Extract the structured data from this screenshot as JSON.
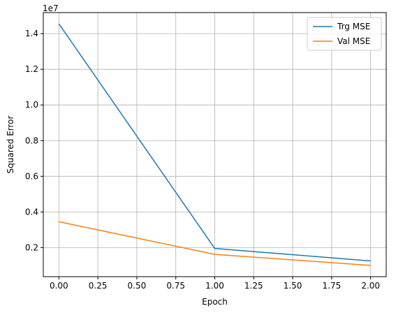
{
  "chart_data": {
    "type": "line",
    "title": "",
    "xlabel": "Epoch",
    "ylabel": "Squared Error",
    "y_scale_label": "1e7",
    "x": [
      0.0,
      1.0,
      2.0
    ],
    "series": [
      {
        "name": "Trg MSE",
        "color": "#1f77b4",
        "values": [
          14550000,
          1950000,
          1250000
        ]
      },
      {
        "name": "Val MSE",
        "color": "#ff7f0e",
        "values": [
          3450000,
          1620000,
          1000000
        ]
      }
    ],
    "xlim": [
      -0.1,
      2.1
    ],
    "ylim": [
      370000,
      15180000
    ],
    "x_ticks": [
      0.0,
      0.25,
      0.5,
      0.75,
      1.0,
      1.25,
      1.5,
      1.75,
      2.0
    ],
    "x_tick_labels": [
      "0.00",
      "0.25",
      "0.50",
      "0.75",
      "1.00",
      "1.25",
      "1.50",
      "1.75",
      "2.00"
    ],
    "y_ticks": [
      2000000,
      4000000,
      6000000,
      8000000,
      10000000,
      12000000,
      14000000
    ],
    "y_tick_labels": [
      "0.2",
      "0.4",
      "0.6",
      "0.8",
      "1.0",
      "1.2",
      "1.4"
    ],
    "grid": true,
    "legend_position": "top-right"
  }
}
